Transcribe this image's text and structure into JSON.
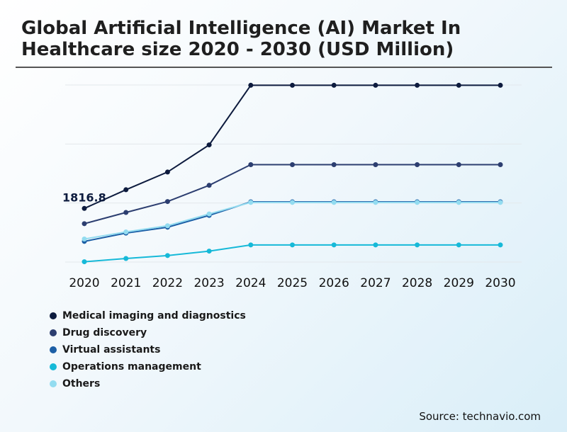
{
  "title": "Global Artificial Intelligence (AI) Market In Healthcare size 2020 - 2030 (USD Million)",
  "source": "Source: technavio.com",
  "chart_data": {
    "type": "line",
    "title": "Global Artificial Intelligence (AI) Market In Healthcare size 2020 - 2030 (USD Million)",
    "xlabel": "",
    "ylabel": "USD Million",
    "x": [
      "2020",
      "2021",
      "2022",
      "2023",
      "2024",
      "2025",
      "2026",
      "2027",
      "2028",
      "2029",
      "2030"
    ],
    "ylim": [
      0,
      6000
    ],
    "grid": true,
    "legend_position": "bottom-left",
    "annotations": [
      {
        "series": 0,
        "index": 0,
        "text": "1816.8"
      }
    ],
    "series": [
      {
        "name": "Medical imaging and diagnostics",
        "color": "#0d1b3e",
        "values": [
          1816.8,
          2450,
          3050,
          3970,
          5990,
          5990,
          5990,
          5990,
          5990,
          5990,
          5990
        ]
      },
      {
        "name": "Drug discovery",
        "color": "#2c3e70",
        "values": [
          1300,
          1680,
          2050,
          2600,
          3300,
          3300,
          3300,
          3300,
          3300,
          3300,
          3300
        ]
      },
      {
        "name": "Virtual assistants",
        "color": "#1c5fa6",
        "values": [
          700,
          980,
          1180,
          1580,
          2040,
          2040,
          2040,
          2040,
          2040,
          2040,
          2040
        ]
      },
      {
        "name": "Operations management",
        "color": "#16b9d8",
        "values": [
          10,
          120,
          220,
          370,
          580,
          580,
          580,
          580,
          580,
          580,
          580
        ]
      },
      {
        "name": "Others",
        "color": "#93dcf0",
        "values": [
          780,
          1020,
          1230,
          1630,
          2020,
          2020,
          2020,
          2020,
          2020,
          2020,
          2020
        ]
      }
    ]
  }
}
